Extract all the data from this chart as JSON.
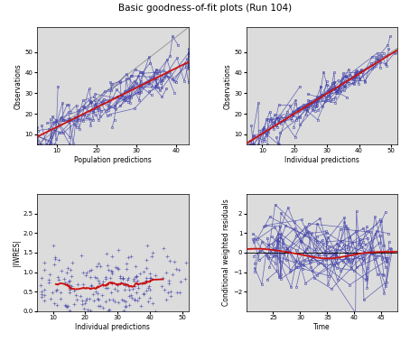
{
  "title": "Basic goodness-of-fit plots (Run 104)",
  "title_fontsize": 7.5,
  "subplot_bg": "#dcdcdc",
  "fig_bg": "#ffffff",
  "line_color": "#4444aa",
  "red_color": "#cc1111",
  "identity_color": "#999999",
  "dot_color": "#4444aa",
  "plots": [
    {
      "xlabel": "Population predictions",
      "ylabel": "Observations",
      "xlim": [
        5,
        43
      ],
      "ylim": [
        5,
        62
      ],
      "xticks": [
        10,
        20,
        30,
        40
      ],
      "yticks": [
        10,
        20,
        30,
        40,
        50
      ]
    },
    {
      "xlabel": "Individual predictions",
      "ylabel": "Observations",
      "xlim": [
        5,
        52
      ],
      "ylim": [
        5,
        62
      ],
      "xticks": [
        10,
        20,
        30,
        40,
        50
      ],
      "yticks": [
        10,
        20,
        30,
        40,
        50
      ]
    },
    {
      "xlabel": "Individual predictions",
      "ylabel": "|IWRES|",
      "xlim": [
        5,
        52
      ],
      "ylim": [
        0.0,
        3.0
      ],
      "xticks": [
        10,
        20,
        30,
        40,
        50
      ],
      "yticks": [
        0.0,
        0.5,
        1.0,
        1.5,
        2.0,
        2.5
      ]
    },
    {
      "xlabel": "Time",
      "ylabel": "Conditional weighted residuals",
      "xlim": [
        20,
        48
      ],
      "ylim": [
        -3.0,
        3.0
      ],
      "xticks": [
        25,
        30,
        35,
        40,
        45
      ],
      "yticks": [
        -2,
        -1,
        0,
        1,
        2
      ]
    }
  ]
}
